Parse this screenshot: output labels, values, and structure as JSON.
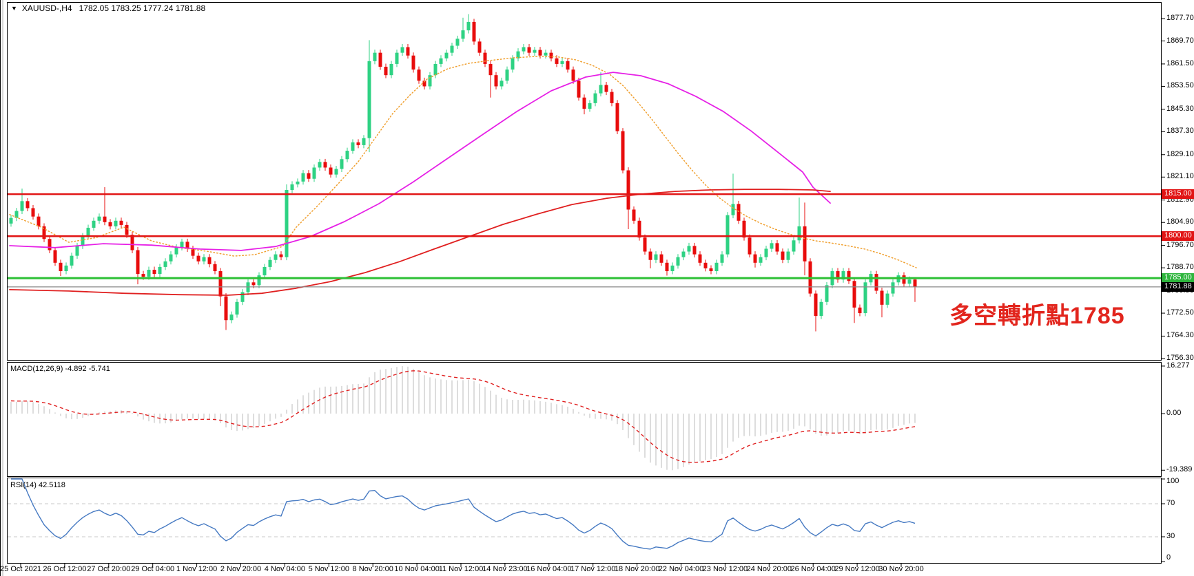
{
  "header": {
    "collapse_icon": "▼",
    "title_symbol": "XAUUSD-,H4",
    "title_ohlc": "1782.05 1783.25 1777.24 1781.88"
  },
  "annotation": {
    "text": "多空轉折點1785",
    "color": "#e2251d"
  },
  "colors": {
    "candle_up": "#2ed283",
    "candle_down": "#e80c0c",
    "ma_fast": "#f0a030",
    "ma_mid": "#e620e6",
    "ma_slow": "#e02020",
    "macd_histogram": "#c6c6c6",
    "macd_signal": "#e02020",
    "rsi_line": "#4579c2",
    "rsi_dash": "#c8c8c8",
    "axis_text": "#000000",
    "panel_border": "#000000"
  },
  "chart_data": [
    {
      "type": "candlestick",
      "symbol": "XAUUSD-",
      "timeframe": "H4",
      "ohlc_display": {
        "open": 1782.05,
        "high": 1783.25,
        "low": 1777.24,
        "close": 1781.88
      },
      "y_axis_ticks": [
        "1877.70",
        "1869.70",
        "1861.50",
        "1853.50",
        "1845.30",
        "1837.30",
        "1829.10",
        "1821.10",
        "1812.90",
        "1804.90",
        "1796.70",
        "1788.70",
        "1780.50",
        "1772.50",
        "1764.30",
        "1756.30"
      ],
      "x_labels": [
        "25 Oct 2021",
        "26 Oct 12:00",
        "27 Oct 20:00",
        "29 Oct 04:00",
        "1 Nov 12:00",
        "2 Nov 20:00",
        "4 Nov 04:00",
        "5 Nov 12:00",
        "8 Nov 20:00",
        "10 Nov 04:00",
        "11 Nov 12:00",
        "14 Nov 23:00",
        "16 Nov 04:00",
        "17 Nov 12:00",
        "18 Nov 20:00",
        "22 Nov 04:00",
        "23 Nov 12:00",
        "24 Nov 20:00",
        "26 Nov 04:00",
        "29 Nov 12:00",
        "30 Nov 20:00"
      ],
      "levels": [
        {
          "price": 1815.0,
          "label": "1815.00",
          "line_color": "#e11414",
          "line_width": 2.6,
          "badge_bg": "#e11414",
          "badge_fg": "#ffffff"
        },
        {
          "price": 1800.0,
          "label": "1800.00",
          "line_color": "#e11414",
          "line_width": 2.6,
          "badge_bg": "#e11414",
          "badge_fg": "#ffffff"
        },
        {
          "price": 1785.0,
          "label": "1785.00",
          "line_color": "#2fc137",
          "line_width": 3.2,
          "badge_bg": "#2db53c",
          "badge_fg": "#ffffff"
        },
        {
          "price": 1781.88,
          "label": "1781.88",
          "line_color": "#8a8a8a",
          "line_width": 1.3,
          "badge_bg": "#000000",
          "badge_fg": "#ffffff"
        }
      ],
      "first_open": 1804.5,
      "pre_closes": [
        1782,
        1783.5,
        1785,
        1786.5,
        1788,
        1789.5,
        1791,
        1792.5,
        1794,
        1795.5,
        1796.5,
        1797.5,
        1798.5,
        1799.5,
        1800.3,
        1801,
        1801.8,
        1802.5,
        1803,
        1803.5,
        1804,
        1804.4,
        1804.8,
        1805.1,
        1805.4,
        1805.7,
        1805.9,
        1806,
        1806.1,
        1806.2
      ],
      "closes": [
        1806.5,
        1809,
        1812.5,
        1810,
        1807,
        1803.5,
        1799,
        1795,
        1790.5,
        1787.5,
        1789.5,
        1793,
        1796.5,
        1800,
        1803,
        1805.5,
        1807,
        1805,
        1803.5,
        1805.5,
        1804,
        1800.5,
        1795,
        1786.5,
        1785.5,
        1788,
        1786.5,
        1789,
        1791,
        1793.5,
        1796,
        1798,
        1795.5,
        1793,
        1791,
        1792.5,
        1790,
        1787.5,
        1778.5,
        1770,
        1772,
        1776.5,
        1780,
        1783.5,
        1782.5,
        1786,
        1789,
        1791.5,
        1793.5,
        1792.5,
        1816.5,
        1818.5,
        1819.5,
        1822.5,
        1820.5,
        1824.5,
        1826.5,
        1824.5,
        1822,
        1824,
        1827.5,
        1830.5,
        1833.5,
        1832.5,
        1835,
        1862.5,
        1865.5,
        1860.5,
        1857.5,
        1861.5,
        1865.5,
        1867.5,
        1864.5,
        1859.5,
        1855.5,
        1853.5,
        1857.5,
        1861.5,
        1863.5,
        1865.5,
        1868,
        1870.5,
        1873.5,
        1876.5,
        1869.5,
        1865.5,
        1861.5,
        1857.5,
        1853.5,
        1855.5,
        1859.5,
        1863.5,
        1866,
        1867.5,
        1865.5,
        1866.5,
        1864.5,
        1865.5,
        1863.5,
        1861.5,
        1862.5,
        1859.5,
        1855.5,
        1849.5,
        1845.5,
        1847.5,
        1851,
        1854,
        1851.5,
        1847.5,
        1837.5,
        1823.5,
        1809.5,
        1805.5,
        1799.5,
        1794.5,
        1791.5,
        1793.5,
        1790.5,
        1787.5,
        1789.5,
        1792.5,
        1794.5,
        1796.5,
        1793.5,
        1790.5,
        1788.5,
        1787.5,
        1790.5,
        1793.5,
        1807.5,
        1811.5,
        1805.5,
        1799.5,
        1793.5,
        1790.5,
        1792.5,
        1795.5,
        1797.5,
        1794.5,
        1791.5,
        1794.5,
        1798.5,
        1803.5,
        1791,
        1779.5,
        1771.5,
        1776.5,
        1782.5,
        1787.5,
        1784.5,
        1787.5,
        1784,
        1774.5,
        1772.5,
        1783.5,
        1786.5,
        1780.5,
        1775.5,
        1779.5,
        1783.5,
        1786,
        1783,
        1784.5,
        1781.88
      ],
      "wick_overrides": {
        "2": [
          1817,
          null
        ],
        "9": [
          null,
          1785.8
        ],
        "17": [
          1817.5,
          null
        ],
        "23": [
          null,
          1782.8
        ],
        "38": [
          null,
          1775
        ],
        "39": [
          null,
          1766.5
        ],
        "50": [
          1818.5,
          null
        ],
        "65": [
          1870,
          1830
        ],
        "82": [
          1878,
          null
        ],
        "83": [
          1879.3,
          null
        ],
        "87": [
          null,
          1849.5
        ],
        "104": [
          null,
          1843.5
        ],
        "107": [
          1858.5,
          null
        ],
        "112": [
          null,
          1802.5
        ],
        "116": [
          null,
          1788.5
        ],
        "119": [
          null,
          1785.9
        ],
        "131": [
          1822.3,
          null
        ],
        "135": [
          null,
          1788.8
        ],
        "143": [
          1813.8,
          null
        ],
        "144": [
          1812,
          1786
        ],
        "146": [
          null,
          1766
        ],
        "153": [
          null,
          1769
        ],
        "158": [
          null,
          1771
        ],
        "164": [
          1785,
          1776.5
        ]
      },
      "ma_lines": [
        {
          "name": "ma-fast-orange",
          "color": "#f0a030",
          "style": "dotted",
          "width": 1.5,
          "points": [
            [
              14,
              1807.7
            ],
            [
              60,
              1803.2
            ],
            [
              100,
              1797.8
            ],
            [
              140,
              1799.5
            ],
            [
              180,
              1803.2
            ],
            [
              220,
              1798.3
            ],
            [
              260,
              1795.9
            ],
            [
              300,
              1794.6
            ],
            [
              340,
              1792.9
            ],
            [
              370,
              1793.4
            ],
            [
              410,
              1796.3
            ],
            [
              430,
              1803.2
            ],
            [
              460,
              1810.6
            ],
            [
              490,
              1818.5
            ],
            [
              520,
              1826.6
            ],
            [
              545,
              1835.2
            ],
            [
              570,
              1843.8
            ],
            [
              595,
              1850.4
            ],
            [
              620,
              1856.1
            ],
            [
              650,
              1859.8
            ],
            [
              680,
              1861.7
            ],
            [
              710,
              1862.7
            ],
            [
              745,
              1863.7
            ],
            [
              780,
              1864.2
            ],
            [
              810,
              1864.0
            ],
            [
              835,
              1863.0
            ],
            [
              860,
              1861.0
            ],
            [
              885,
              1857.8
            ],
            [
              905,
              1853.6
            ],
            [
              925,
              1848.0
            ],
            [
              945,
              1842.1
            ],
            [
              965,
              1835.7
            ],
            [
              985,
              1829.3
            ],
            [
              1005,
              1823.4
            ],
            [
              1025,
              1818.0
            ],
            [
              1045,
              1813.5
            ],
            [
              1065,
              1809.9
            ],
            [
              1085,
              1806.9
            ],
            [
              1105,
              1804.5
            ],
            [
              1125,
              1802.5
            ],
            [
              1145,
              1800.8
            ],
            [
              1165,
              1799.3
            ],
            [
              1185,
              1798.3
            ],
            [
              1205,
              1797.6
            ],
            [
              1230,
              1796.6
            ],
            [
              1255,
              1795.4
            ],
            [
              1280,
              1793.6
            ],
            [
              1305,
              1791.4
            ],
            [
              1330,
              1788.7
            ]
          ]
        },
        {
          "name": "ma-mid-magenta",
          "color": "#e620e6",
          "style": "solid",
          "width": 1.8,
          "points": [
            [
              14,
              1796.6
            ],
            [
              80,
              1795.9
            ],
            [
              150,
              1797.3
            ],
            [
              220,
              1796.8
            ],
            [
              290,
              1795.4
            ],
            [
              350,
              1794.9
            ],
            [
              400,
              1796.3
            ],
            [
              450,
              1799.8
            ],
            [
              500,
              1805.2
            ],
            [
              550,
              1811.6
            ],
            [
              600,
              1819.4
            ],
            [
              650,
              1827.8
            ],
            [
              700,
              1836.2
            ],
            [
              750,
              1844.5
            ],
            [
              800,
              1851.9
            ],
            [
              850,
              1856.8
            ],
            [
              890,
              1858.5
            ],
            [
              930,
              1857.3
            ],
            [
              970,
              1854.4
            ],
            [
              1010,
              1849.9
            ],
            [
              1050,
              1844.5
            ],
            [
              1090,
              1837.6
            ],
            [
              1130,
              1829.8
            ],
            [
              1165,
              1822.9
            ],
            [
              1180,
              1817.5
            ],
            [
              1205,
              1811.8
            ]
          ]
        },
        {
          "name": "ma-slow-red",
          "color": "#e02020",
          "style": "solid",
          "width": 1.8,
          "points": [
            [
              14,
              1780.9
            ],
            [
              100,
              1780.4
            ],
            [
              180,
              1779.6
            ],
            [
              260,
              1779.1
            ],
            [
              330,
              1778.9
            ],
            [
              380,
              1779.6
            ],
            [
              430,
              1781.4
            ],
            [
              480,
              1783.8
            ],
            [
              530,
              1787.0
            ],
            [
              580,
              1790.9
            ],
            [
              630,
              1795.4
            ],
            [
              680,
              1799.8
            ],
            [
              730,
              1804.2
            ],
            [
              780,
              1807.9
            ],
            [
              830,
              1811.3
            ],
            [
              880,
              1813.5
            ],
            [
              930,
              1815.0
            ],
            [
              980,
              1816.0
            ],
            [
              1030,
              1816.5
            ],
            [
              1080,
              1816.7
            ],
            [
              1130,
              1816.7
            ],
            [
              1180,
              1816.5
            ],
            [
              1205,
              1816.0
            ]
          ]
        }
      ]
    },
    {
      "type": "macd",
      "label": "MACD(12,26,9) -4.892 -5.741",
      "params": [
        12,
        26,
        9
      ],
      "current": {
        "macd": -4.892,
        "signal": -5.741
      },
      "y_ticks": [
        "16.277",
        "0.00",
        "-19.389"
      ],
      "max": 16.277,
      "min": -19.389
    },
    {
      "type": "rsi",
      "label": "RSI(14) 42.5118",
      "period": 14,
      "current": 42.5118,
      "levels": [
        70,
        30
      ],
      "y_ticks": [
        "100",
        "70",
        "30",
        "0"
      ]
    }
  ]
}
